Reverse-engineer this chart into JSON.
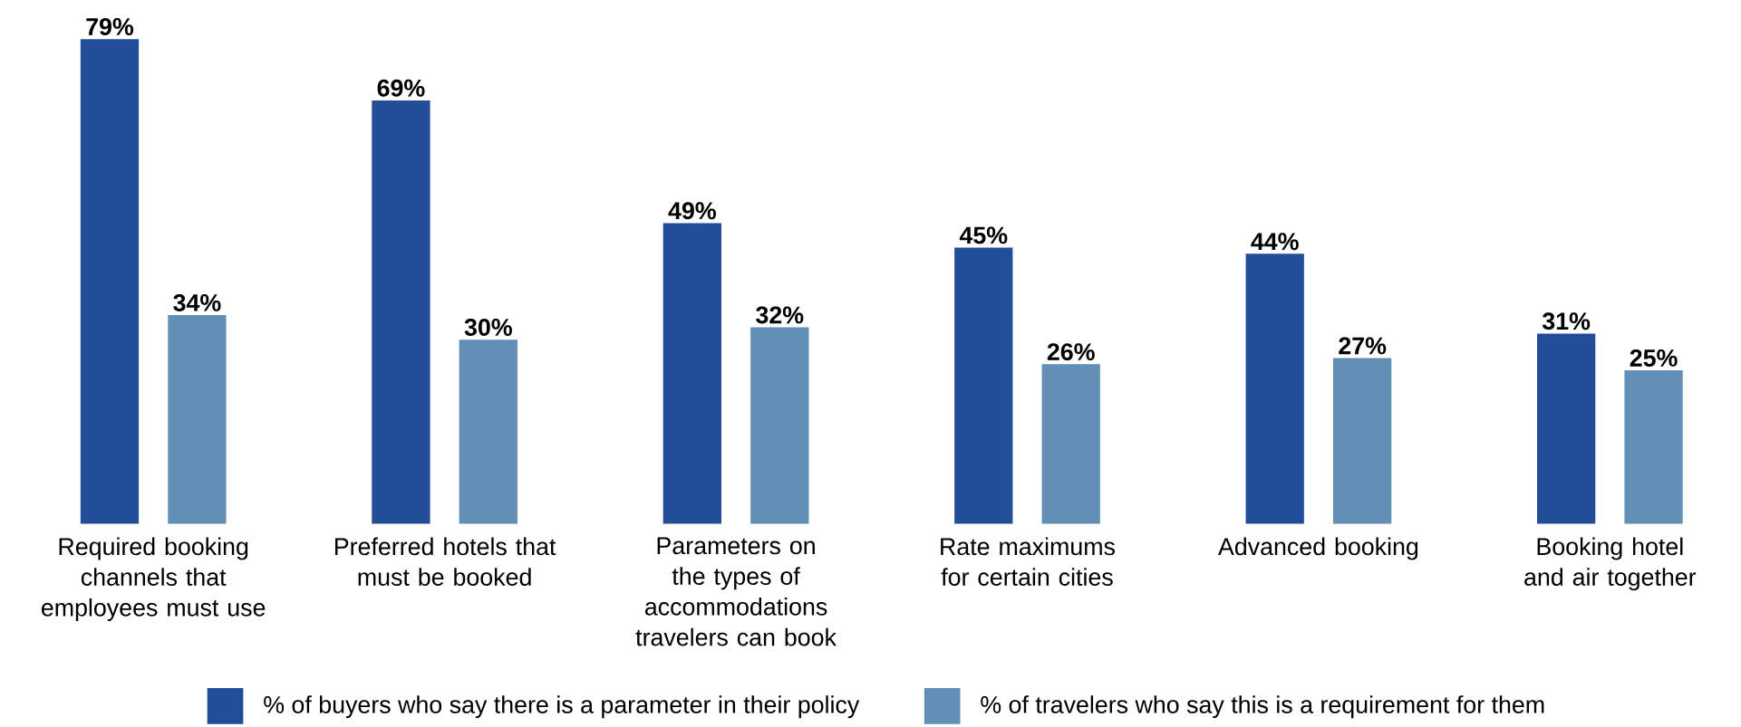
{
  "chart_data": {
    "type": "bar",
    "categories": [
      "Required booking channels that employees must use",
      "Preferred hotels that must be booked",
      "Parameters on the types of accommodations travelers can book",
      "Rate maximums for certain cities",
      "Advanced booking",
      "Booking hotel and air together"
    ],
    "series": [
      {
        "name": "% of buyers who say there is a parameter in their policy",
        "color": "#214d99",
        "values": [
          79,
          69,
          49,
          45,
          44,
          31
        ],
        "value_labels": [
          "79%",
          "69%",
          "49%",
          "45%",
          "44%",
          "31%"
        ]
      },
      {
        "name": "% of travelers who say this is a requirement for them",
        "color": "#628fb5",
        "values": [
          34,
          30,
          32,
          26,
          27,
          25
        ],
        "value_labels": [
          "34%",
          "30%",
          "32%",
          "26%",
          "27%",
          "25%"
        ]
      }
    ],
    "legend": "bottom"
  }
}
